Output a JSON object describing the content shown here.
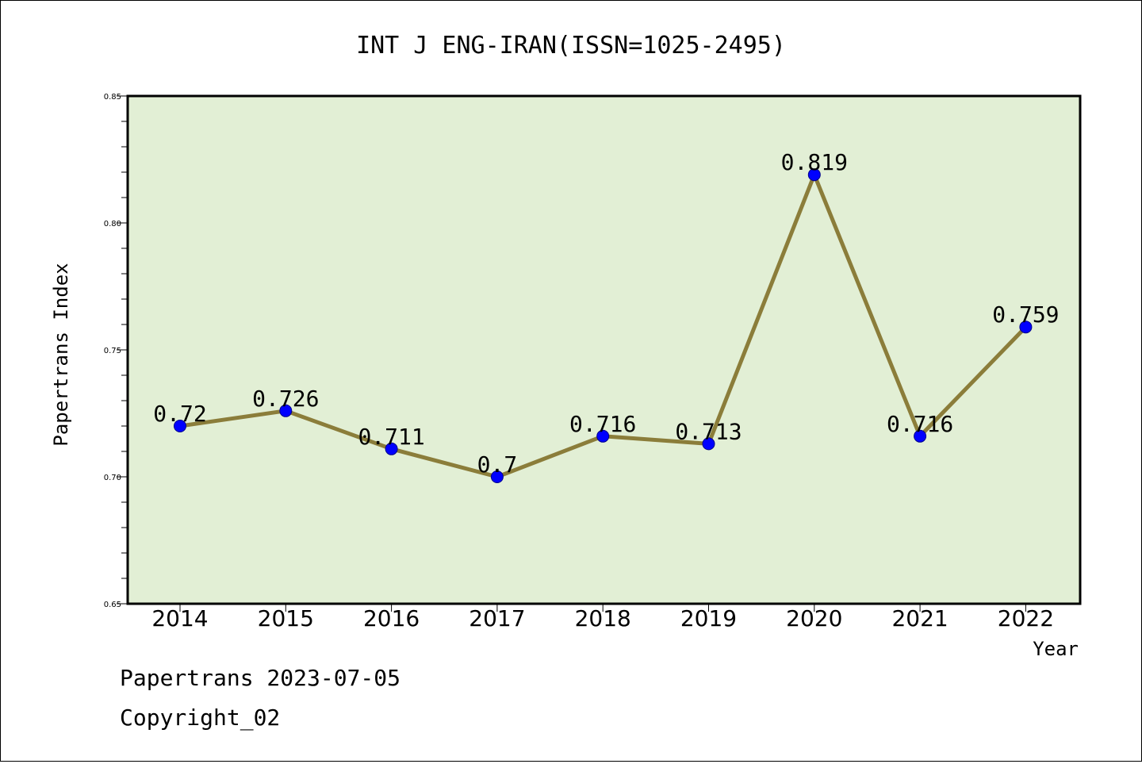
{
  "chart_data": {
    "type": "line",
    "title": "INT J ENG-IRAN(ISSN=1025-2495)",
    "xlabel": "Year",
    "ylabel": "Papertrans Index",
    "categories": [
      "2014",
      "2015",
      "2016",
      "2017",
      "2018",
      "2019",
      "2020",
      "2021",
      "2022"
    ],
    "series": [
      {
        "values": [
          0.72,
          0.726,
          0.711,
          0.7,
          0.716,
          0.713,
          0.819,
          0.716,
          0.759
        ],
        "labels": [
          "0.72",
          "0.726",
          "0.711",
          "0.7",
          "0.716",
          "0.713",
          "0.819",
          "0.716",
          "0.759"
        ]
      }
    ],
    "ylim": [
      0.65,
      0.85
    ],
    "yticks": [
      0.65,
      0.7,
      0.75,
      0.8,
      0.85
    ],
    "ytick_labels": [
      "0.65",
      "0.70",
      "0.75",
      "0.80",
      "0.85"
    ],
    "grid": false,
    "colors": {
      "line": "#8b7d3a",
      "marker": "#0000ff",
      "plot_background": "#e2efd5"
    }
  },
  "footer": {
    "date_line": "Papertrans 2023-07-05",
    "copyright": "Copyright_02"
  }
}
